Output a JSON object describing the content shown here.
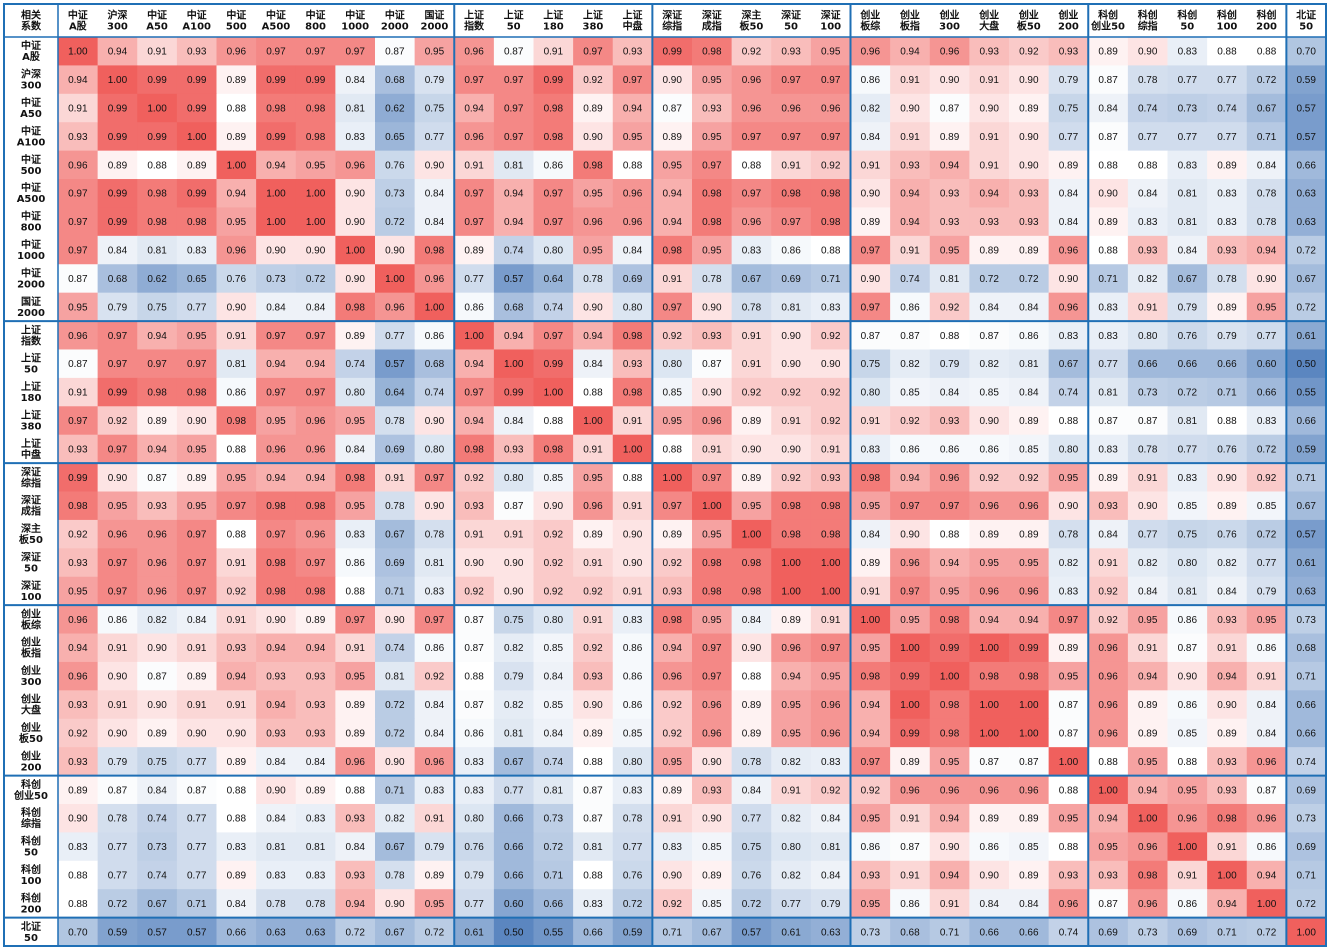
{
  "chart_data": {
    "type": "heatmap",
    "title": "",
    "corner_label": "相关系数",
    "row_labels": [
      "中证A股",
      "沪深300",
      "中证A50",
      "中证A100",
      "中证500",
      "中证A500",
      "中证800",
      "中证1000",
      "中证2000",
      "国证2000",
      "上证指数",
      "上证50",
      "上证180",
      "上证380",
      "上证中盘",
      "深证综指",
      "深证成指",
      "深主板50",
      "深证50",
      "深证100",
      "创业板综",
      "创业板指",
      "创业300",
      "创业大盘",
      "创业板50",
      "创业200",
      "科创创业50",
      "科创综指",
      "科创50",
      "科创100",
      "科创200",
      "北证50"
    ],
    "col_labels": [
      "中证A股",
      "沪深300",
      "中证A50",
      "中证A100",
      "中证500",
      "中证A500",
      "中证800",
      "中证1000",
      "中证2000",
      "国证2000",
      "上证指数",
      "上证50",
      "上证180",
      "上证380",
      "上证中盘",
      "深证综指",
      "深证成指",
      "深主板50",
      "深证50",
      "深证100",
      "创业板综",
      "创业板指",
      "创业300",
      "创业大盘",
      "创业板50",
      "创业200",
      "科创创业50",
      "科创综指",
      "科创50",
      "科创100",
      "科创200",
      "北证50"
    ],
    "groups": [
      10,
      5,
      5,
      6,
      5,
      1
    ],
    "color_scale": {
      "min": 0.5,
      "mid": 0.88,
      "max": 1.0,
      "low_color": "#5b86c0",
      "mid_color": "#ffffff",
      "high_color": "#f0605d"
    },
    "values": [
      [
        1.0,
        0.94,
        0.91,
        0.93,
        0.96,
        0.97,
        0.97,
        0.97,
        0.87,
        0.95,
        0.96,
        0.87,
        0.91,
        0.97,
        0.93,
        0.99,
        0.98,
        0.92,
        0.93,
        0.95,
        0.96,
        0.94,
        0.96,
        0.93,
        0.92,
        0.93,
        0.89,
        0.9,
        0.83,
        0.88,
        0.88,
        0.7
      ],
      [
        0.94,
        1.0,
        0.99,
        0.99,
        0.89,
        0.99,
        0.99,
        0.84,
        0.68,
        0.79,
        0.97,
        0.97,
        0.99,
        0.92,
        0.97,
        0.9,
        0.95,
        0.96,
        0.97,
        0.97,
        0.86,
        0.91,
        0.9,
        0.91,
        0.9,
        0.79,
        0.87,
        0.78,
        0.77,
        0.77,
        0.72,
        0.59
      ],
      [
        0.91,
        0.99,
        1.0,
        0.99,
        0.88,
        0.98,
        0.98,
        0.81,
        0.62,
        0.75,
        0.94,
        0.97,
        0.98,
        0.89,
        0.94,
        0.87,
        0.93,
        0.96,
        0.96,
        0.96,
        0.82,
        0.9,
        0.87,
        0.9,
        0.89,
        0.75,
        0.84,
        0.74,
        0.73,
        0.74,
        0.67,
        0.57
      ],
      [
        0.93,
        0.99,
        0.99,
        1.0,
        0.89,
        0.99,
        0.98,
        0.83,
        0.65,
        0.77,
        0.96,
        0.97,
        0.98,
        0.9,
        0.95,
        0.89,
        0.95,
        0.97,
        0.97,
        0.97,
        0.84,
        0.91,
        0.89,
        0.91,
        0.9,
        0.77,
        0.87,
        0.77,
        0.77,
        0.77,
        0.71,
        0.57
      ],
      [
        0.96,
        0.89,
        0.88,
        0.89,
        1.0,
        0.94,
        0.95,
        0.96,
        0.76,
        0.9,
        0.91,
        0.81,
        0.86,
        0.98,
        0.88,
        0.95,
        0.97,
        0.88,
        0.91,
        0.92,
        0.91,
        0.93,
        0.94,
        0.91,
        0.9,
        0.89,
        0.88,
        0.88,
        0.83,
        0.89,
        0.84,
        0.66
      ],
      [
        0.97,
        0.99,
        0.98,
        0.99,
        0.94,
        1.0,
        1.0,
        0.9,
        0.73,
        0.84,
        0.97,
        0.94,
        0.97,
        0.95,
        0.96,
        0.94,
        0.98,
        0.97,
        0.98,
        0.98,
        0.9,
        0.94,
        0.93,
        0.94,
        0.93,
        0.84,
        0.9,
        0.84,
        0.81,
        0.83,
        0.78,
        0.63
      ],
      [
        0.97,
        0.99,
        0.98,
        0.98,
        0.95,
        1.0,
        1.0,
        0.9,
        0.72,
        0.84,
        0.97,
        0.94,
        0.97,
        0.96,
        0.96,
        0.94,
        0.98,
        0.96,
        0.97,
        0.98,
        0.89,
        0.94,
        0.93,
        0.93,
        0.93,
        0.84,
        0.89,
        0.83,
        0.81,
        0.83,
        0.78,
        0.63
      ],
      [
        0.97,
        0.84,
        0.81,
        0.83,
        0.96,
        0.9,
        0.9,
        1.0,
        0.9,
        0.98,
        0.89,
        0.74,
        0.8,
        0.95,
        0.84,
        0.98,
        0.95,
        0.83,
        0.86,
        0.88,
        0.97,
        0.91,
        0.95,
        0.89,
        0.89,
        0.96,
        0.88,
        0.93,
        0.84,
        0.93,
        0.94,
        0.72
      ],
      [
        0.87,
        0.68,
        0.62,
        0.65,
        0.76,
        0.73,
        0.72,
        0.9,
        1.0,
        0.96,
        0.77,
        0.57,
        0.64,
        0.78,
        0.69,
        0.91,
        0.78,
        0.67,
        0.69,
        0.71,
        0.9,
        0.74,
        0.81,
        0.72,
        0.72,
        0.9,
        0.71,
        0.82,
        0.67,
        0.78,
        0.9,
        0.67
      ],
      [
        0.95,
        0.79,
        0.75,
        0.77,
        0.9,
        0.84,
        0.84,
        0.98,
        0.96,
        1.0,
        0.86,
        0.68,
        0.74,
        0.9,
        0.8,
        0.97,
        0.9,
        0.78,
        0.81,
        0.83,
        0.97,
        0.86,
        0.92,
        0.84,
        0.84,
        0.96,
        0.83,
        0.91,
        0.79,
        0.89,
        0.95,
        0.72
      ],
      [
        0.96,
        0.97,
        0.94,
        0.95,
        0.91,
        0.97,
        0.97,
        0.89,
        0.77,
        0.86,
        1.0,
        0.94,
        0.97,
        0.94,
        0.98,
        0.92,
        0.93,
        0.91,
        0.9,
        0.92,
        0.87,
        0.87,
        0.88,
        0.87,
        0.86,
        0.83,
        0.83,
        0.8,
        0.76,
        0.79,
        0.77,
        0.61
      ],
      [
        0.87,
        0.97,
        0.97,
        0.97,
        0.81,
        0.94,
        0.94,
        0.74,
        0.57,
        0.68,
        0.94,
        1.0,
        0.99,
        0.84,
        0.93,
        0.8,
        0.87,
        0.91,
        0.9,
        0.9,
        0.75,
        0.82,
        0.79,
        0.82,
        0.81,
        0.67,
        0.77,
        0.66,
        0.66,
        0.66,
        0.6,
        0.5
      ],
      [
        0.91,
        0.99,
        0.98,
        0.98,
        0.86,
        0.97,
        0.97,
        0.8,
        0.64,
        0.74,
        0.97,
        0.99,
        1.0,
        0.88,
        0.98,
        0.85,
        0.9,
        0.92,
        0.92,
        0.92,
        0.8,
        0.85,
        0.84,
        0.85,
        0.84,
        0.74,
        0.81,
        0.73,
        0.72,
        0.71,
        0.66,
        0.55
      ],
      [
        0.97,
        0.92,
        0.89,
        0.9,
        0.98,
        0.95,
        0.96,
        0.95,
        0.78,
        0.9,
        0.94,
        0.84,
        0.88,
        1.0,
        0.91,
        0.95,
        0.96,
        0.89,
        0.91,
        0.92,
        0.91,
        0.92,
        0.93,
        0.9,
        0.89,
        0.88,
        0.87,
        0.87,
        0.81,
        0.88,
        0.83,
        0.66
      ],
      [
        0.93,
        0.97,
        0.94,
        0.95,
        0.88,
        0.96,
        0.96,
        0.84,
        0.69,
        0.8,
        0.98,
        0.93,
        0.98,
        0.91,
        1.0,
        0.88,
        0.91,
        0.9,
        0.9,
        0.91,
        0.83,
        0.86,
        0.86,
        0.86,
        0.85,
        0.8,
        0.83,
        0.78,
        0.77,
        0.76,
        0.72,
        0.59
      ],
      [
        0.99,
        0.9,
        0.87,
        0.89,
        0.95,
        0.94,
        0.94,
        0.98,
        0.91,
        0.97,
        0.92,
        0.8,
        0.85,
        0.95,
        0.88,
        1.0,
        0.97,
        0.89,
        0.92,
        0.93,
        0.98,
        0.94,
        0.96,
        0.92,
        0.92,
        0.95,
        0.89,
        0.91,
        0.83,
        0.9,
        0.92,
        0.71
      ],
      [
        0.98,
        0.95,
        0.93,
        0.95,
        0.97,
        0.98,
        0.98,
        0.95,
        0.78,
        0.9,
        0.93,
        0.87,
        0.9,
        0.96,
        0.91,
        0.97,
        1.0,
        0.95,
        0.98,
        0.98,
        0.95,
        0.97,
        0.97,
        0.96,
        0.96,
        0.9,
        0.93,
        0.9,
        0.85,
        0.89,
        0.85,
        0.67
      ],
      [
        0.92,
        0.96,
        0.96,
        0.97,
        0.88,
        0.97,
        0.96,
        0.83,
        0.67,
        0.78,
        0.91,
        0.91,
        0.92,
        0.89,
        0.9,
        0.89,
        0.95,
        1.0,
        0.98,
        0.98,
        0.84,
        0.9,
        0.88,
        0.89,
        0.89,
        0.78,
        0.84,
        0.77,
        0.75,
        0.76,
        0.72,
        0.57
      ],
      [
        0.93,
        0.97,
        0.96,
        0.97,
        0.91,
        0.98,
        0.97,
        0.86,
        0.69,
        0.81,
        0.9,
        0.9,
        0.92,
        0.91,
        0.9,
        0.92,
        0.98,
        0.98,
        1.0,
        1.0,
        0.89,
        0.96,
        0.94,
        0.95,
        0.95,
        0.82,
        0.91,
        0.82,
        0.8,
        0.82,
        0.77,
        0.61
      ],
      [
        0.95,
        0.97,
        0.96,
        0.97,
        0.92,
        0.98,
        0.98,
        0.88,
        0.71,
        0.83,
        0.92,
        0.9,
        0.92,
        0.92,
        0.91,
        0.93,
        0.98,
        0.98,
        1.0,
        1.0,
        0.91,
        0.97,
        0.95,
        0.96,
        0.96,
        0.83,
        0.92,
        0.84,
        0.81,
        0.84,
        0.79,
        0.63
      ],
      [
        0.96,
        0.86,
        0.82,
        0.84,
        0.91,
        0.9,
        0.89,
        0.97,
        0.9,
        0.97,
        0.87,
        0.75,
        0.8,
        0.91,
        0.83,
        0.98,
        0.95,
        0.84,
        0.89,
        0.91,
        1.0,
        0.95,
        0.98,
        0.94,
        0.94,
        0.97,
        0.92,
        0.95,
        0.86,
        0.93,
        0.95,
        0.73
      ],
      [
        0.94,
        0.91,
        0.9,
        0.91,
        0.93,
        0.94,
        0.94,
        0.91,
        0.74,
        0.86,
        0.87,
        0.82,
        0.85,
        0.92,
        0.86,
        0.94,
        0.97,
        0.9,
        0.96,
        0.97,
        0.95,
        1.0,
        0.99,
        1.0,
        0.99,
        0.89,
        0.96,
        0.91,
        0.87,
        0.91,
        0.86,
        0.68
      ],
      [
        0.96,
        0.9,
        0.87,
        0.89,
        0.94,
        0.93,
        0.93,
        0.95,
        0.81,
        0.92,
        0.88,
        0.79,
        0.84,
        0.93,
        0.86,
        0.96,
        0.97,
        0.88,
        0.94,
        0.95,
        0.98,
        0.99,
        1.0,
        0.98,
        0.98,
        0.95,
        0.96,
        0.94,
        0.9,
        0.94,
        0.91,
        0.71
      ],
      [
        0.93,
        0.91,
        0.9,
        0.91,
        0.91,
        0.94,
        0.93,
        0.89,
        0.72,
        0.84,
        0.87,
        0.82,
        0.85,
        0.9,
        0.86,
        0.92,
        0.96,
        0.89,
        0.95,
        0.96,
        0.94,
        1.0,
        0.98,
        1.0,
        1.0,
        0.87,
        0.96,
        0.89,
        0.86,
        0.9,
        0.84,
        0.66
      ],
      [
        0.92,
        0.9,
        0.89,
        0.9,
        0.9,
        0.93,
        0.93,
        0.89,
        0.72,
        0.84,
        0.86,
        0.81,
        0.84,
        0.89,
        0.85,
        0.92,
        0.96,
        0.89,
        0.95,
        0.96,
        0.94,
        0.99,
        0.98,
        1.0,
        1.0,
        0.87,
        0.96,
        0.89,
        0.85,
        0.89,
        0.84,
        0.66
      ],
      [
        0.93,
        0.79,
        0.75,
        0.77,
        0.89,
        0.84,
        0.84,
        0.96,
        0.9,
        0.96,
        0.83,
        0.67,
        0.74,
        0.88,
        0.8,
        0.95,
        0.9,
        0.78,
        0.82,
        0.83,
        0.97,
        0.89,
        0.95,
        0.87,
        0.87,
        1.0,
        0.88,
        0.95,
        0.88,
        0.93,
        0.96,
        0.74
      ],
      [
        0.89,
        0.87,
        0.84,
        0.87,
        0.88,
        0.9,
        0.89,
        0.88,
        0.71,
        0.83,
        0.83,
        0.77,
        0.81,
        0.87,
        0.83,
        0.89,
        0.93,
        0.84,
        0.91,
        0.92,
        0.92,
        0.96,
        0.96,
        0.96,
        0.96,
        0.88,
        1.0,
        0.94,
        0.95,
        0.93,
        0.87,
        0.69
      ],
      [
        0.9,
        0.78,
        0.74,
        0.77,
        0.88,
        0.84,
        0.83,
        0.93,
        0.82,
        0.91,
        0.8,
        0.66,
        0.73,
        0.87,
        0.78,
        0.91,
        0.9,
        0.77,
        0.82,
        0.84,
        0.95,
        0.91,
        0.94,
        0.89,
        0.89,
        0.95,
        0.94,
        1.0,
        0.96,
        0.98,
        0.96,
        0.73
      ],
      [
        0.83,
        0.77,
        0.73,
        0.77,
        0.83,
        0.81,
        0.81,
        0.84,
        0.67,
        0.79,
        0.76,
        0.66,
        0.72,
        0.81,
        0.77,
        0.83,
        0.85,
        0.75,
        0.8,
        0.81,
        0.86,
        0.87,
        0.9,
        0.86,
        0.85,
        0.88,
        0.95,
        0.96,
        1.0,
        0.91,
        0.86,
        0.69
      ],
      [
        0.88,
        0.77,
        0.74,
        0.77,
        0.89,
        0.83,
        0.83,
        0.93,
        0.78,
        0.89,
        0.79,
        0.66,
        0.71,
        0.88,
        0.76,
        0.9,
        0.89,
        0.76,
        0.82,
        0.84,
        0.93,
        0.91,
        0.94,
        0.9,
        0.89,
        0.93,
        0.93,
        0.98,
        0.91,
        1.0,
        0.94,
        0.71
      ],
      [
        0.88,
        0.72,
        0.67,
        0.71,
        0.84,
        0.78,
        0.78,
        0.94,
        0.9,
        0.95,
        0.77,
        0.6,
        0.66,
        0.83,
        0.72,
        0.92,
        0.85,
        0.72,
        0.77,
        0.79,
        0.95,
        0.86,
        0.91,
        0.84,
        0.84,
        0.96,
        0.87,
        0.96,
        0.86,
        0.94,
        1.0,
        0.72
      ],
      [
        0.7,
        0.59,
        0.57,
        0.57,
        0.66,
        0.63,
        0.63,
        0.72,
        0.67,
        0.72,
        0.61,
        0.5,
        0.55,
        0.66,
        0.59,
        0.71,
        0.67,
        0.57,
        0.61,
        0.63,
        0.73,
        0.68,
        0.71,
        0.66,
        0.66,
        0.74,
        0.69,
        0.73,
        0.69,
        0.71,
        0.72,
        1.0
      ]
    ]
  }
}
